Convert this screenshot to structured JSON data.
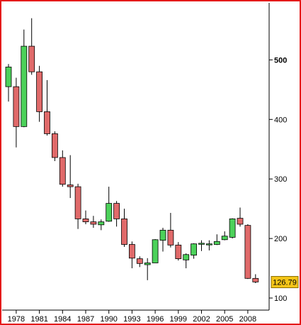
{
  "colors": {
    "frame": "#e51a1a",
    "up": "#4cd15a",
    "down": "#e06a6a",
    "axis": "#000000",
    "badge": "#f5c518"
  },
  "chart_data": {
    "type": "candlestick",
    "title": "",
    "xlabel": "",
    "ylabel": "",
    "ylim": [
      90,
      585
    ],
    "y_ticks": [
      100,
      200,
      300,
      400,
      500
    ],
    "x_tick_labels": [
      "1978",
      "1981",
      "1984",
      "1987",
      "1990",
      "1993",
      "1996",
      "1999",
      "2002",
      "2005",
      "2008"
    ],
    "x_tick_years": [
      1978,
      1981,
      1984,
      1987,
      1990,
      1993,
      1996,
      1999,
      2002,
      2005,
      2008
    ],
    "last_value_label": "126.79",
    "last_value": 126.79,
    "candles": [
      {
        "year": 1977,
        "open": 455,
        "high": 493,
        "low": 430,
        "close": 488
      },
      {
        "year": 1978,
        "open": 455,
        "high": 470,
        "low": 353,
        "close": 388
      },
      {
        "year": 1979,
        "open": 388,
        "high": 551,
        "low": 387,
        "close": 523
      },
      {
        "year": 1980,
        "open": 523,
        "high": 570,
        "low": 475,
        "close": 480
      },
      {
        "year": 1981,
        "open": 480,
        "high": 490,
        "low": 396,
        "close": 413
      },
      {
        "year": 1982,
        "open": 413,
        "high": 466,
        "low": 373,
        "close": 376
      },
      {
        "year": 1983,
        "open": 376,
        "high": 380,
        "low": 330,
        "close": 336
      },
      {
        "year": 1984,
        "open": 336,
        "high": 348,
        "low": 287,
        "close": 291
      },
      {
        "year": 1985,
        "open": 290,
        "high": 340,
        "low": 268,
        "close": 287
      },
      {
        "year": 1986,
        "open": 287,
        "high": 292,
        "low": 216,
        "close": 233
      },
      {
        "year": 1987,
        "open": 233,
        "high": 247,
        "low": 224,
        "close": 228
      },
      {
        "year": 1988,
        "open": 228,
        "high": 238,
        "low": 218,
        "close": 224
      },
      {
        "year": 1989,
        "open": 223,
        "high": 232,
        "low": 214,
        "close": 228
      },
      {
        "year": 1990,
        "open": 229,
        "high": 287,
        "low": 228,
        "close": 259
      },
      {
        "year": 1991,
        "open": 259,
        "high": 263,
        "low": 220,
        "close": 233
      },
      {
        "year": 1992,
        "open": 233,
        "high": 250,
        "low": 186,
        "close": 190
      },
      {
        "year": 1993,
        "open": 190,
        "high": 195,
        "low": 150,
        "close": 167
      },
      {
        "year": 1994,
        "open": 166,
        "high": 170,
        "low": 152,
        "close": 158
      },
      {
        "year": 1995,
        "open": 156,
        "high": 167,
        "low": 130,
        "close": 159
      },
      {
        "year": 1996,
        "open": 159,
        "high": 199,
        "low": 159,
        "close": 198
      },
      {
        "year": 1997,
        "open": 197,
        "high": 218,
        "low": 178,
        "close": 214
      },
      {
        "year": 1998,
        "open": 214,
        "high": 243,
        "low": 185,
        "close": 189
      },
      {
        "year": 1999,
        "open": 189,
        "high": 194,
        "low": 163,
        "close": 166
      },
      {
        "year": 2000,
        "open": 164,
        "high": 175,
        "low": 150,
        "close": 173
      },
      {
        "year": 2001,
        "open": 172,
        "high": 192,
        "low": 166,
        "close": 191
      },
      {
        "year": 2002,
        "open": 191,
        "high": 197,
        "low": 179,
        "close": 192
      },
      {
        "year": 2003,
        "open": 191,
        "high": 197,
        "low": 180,
        "close": 191
      },
      {
        "year": 2004,
        "open": 190,
        "high": 207,
        "low": 189,
        "close": 195
      },
      {
        "year": 2005,
        "open": 198,
        "high": 212,
        "low": 197,
        "close": 204
      },
      {
        "year": 2006,
        "open": 202,
        "high": 234,
        "low": 200,
        "close": 233
      },
      {
        "year": 2007,
        "open": 234,
        "high": 252,
        "low": 220,
        "close": 224
      },
      {
        "year": 2008,
        "open": 222,
        "high": 224,
        "low": 132,
        "close": 133
      },
      {
        "year": 2009,
        "open": 133,
        "high": 140,
        "low": 125,
        "close": 127
      }
    ]
  }
}
